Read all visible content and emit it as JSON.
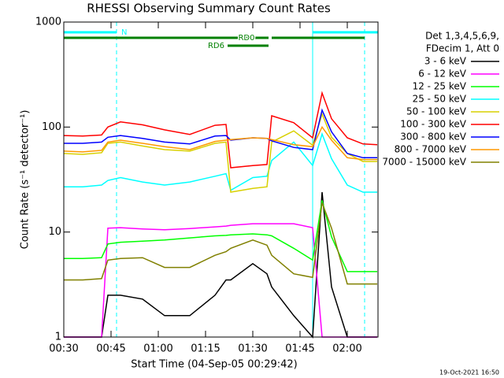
{
  "chart_data": {
    "type": "line",
    "title": "RHESSI Observing Summary Count Rates",
    "xlabel": "Start Time (04-Sep-05 00:29:42)",
    "ylabel": "Count Rate (s⁻¹ detector⁻¹)",
    "legend_header": [
      "Det 1,3,4,5,6,9,",
      "FDecim 1, Att 0"
    ],
    "footer": "19-Oct-2021 16:50",
    "log_y": true,
    "legend_position": "right",
    "xlim": [
      30,
      129.75
    ],
    "xticks": [
      {
        "value": 30,
        "label": "00:30"
      },
      {
        "value": 45,
        "label": "00:45"
      },
      {
        "value": 60,
        "label": "01:00"
      },
      {
        "value": 75,
        "label": "01:15"
      },
      {
        "value": 90,
        "label": "01:30"
      },
      {
        "value": 105,
        "label": "01:45"
      },
      {
        "value": 120,
        "label": "02:00"
      }
    ],
    "ylim": [
      1,
      1000
    ],
    "yticks": [
      1,
      10,
      100,
      1000
    ],
    "x": [
      30,
      36,
      42,
      44,
      48,
      55,
      62,
      70,
      78,
      81.5,
      83,
      90,
      94.5,
      96,
      103,
      109,
      112,
      115,
      120,
      125,
      129.5
    ],
    "series": [
      {
        "name": "3 - 6 keV",
        "color": "#000000",
        "values": [
          1,
          1,
          1,
          2.5,
          2.5,
          2.3,
          1.6,
          1.6,
          2.5,
          3.5,
          3.5,
          5,
          4,
          3,
          1.6,
          1,
          24,
          3,
          1,
          1,
          1
        ]
      },
      {
        "name": "6 - 12 keV",
        "color": "#ff00ff",
        "values": [
          1,
          1,
          1,
          10.9,
          11,
          10.7,
          10.5,
          10.8,
          11.2,
          11.4,
          11.6,
          12,
          12,
          12,
          12,
          11,
          1,
          1,
          1,
          1,
          1
        ]
      },
      {
        "name": "12 - 25 keV",
        "color": "#00ff00",
        "values": [
          5.6,
          5.6,
          5.7,
          7.7,
          8,
          8.2,
          8.4,
          8.8,
          9.2,
          9.3,
          9.4,
          9.6,
          9.4,
          9.2,
          7,
          5.4,
          20,
          9,
          4.2,
          4.2,
          4.2
        ]
      },
      {
        "name": "25 - 50 keV",
        "color": "#00ffff",
        "values": [
          27,
          27,
          28,
          31,
          33,
          30,
          28,
          30,
          34,
          36,
          25,
          33,
          34,
          48,
          72,
          43,
          86,
          50,
          28,
          24,
          24
        ]
      },
      {
        "name": "50 - 100 keV",
        "color": "#d8d000",
        "values": [
          56,
          55,
          57,
          70,
          72,
          66,
          61,
          59,
          70,
          72,
          24,
          26,
          27,
          72,
          92,
          67,
          133,
          80,
          56,
          47,
          47
        ]
      },
      {
        "name": "100 - 300 keV",
        "color": "#ff0000",
        "values": [
          83,
          82,
          84,
          100,
          112,
          105,
          94,
          85,
          104,
          106,
          41,
          43,
          44,
          128,
          110,
          79,
          211,
          120,
          79,
          69,
          68
        ]
      },
      {
        "name": "300 - 800 keV",
        "color": "#0000ff",
        "values": [
          70,
          70,
          72,
          80,
          83,
          78,
          72,
          69,
          82,
          83,
          75,
          79,
          78,
          74,
          64,
          61,
          145,
          90,
          56,
          51,
          51
        ]
      },
      {
        "name": "800 - 7000 keV",
        "color": "#ff9900",
        "values": [
          59,
          58,
          60,
          72,
          75,
          70,
          65,
          61,
          73,
          75,
          76,
          79,
          78,
          76,
          68,
          65,
          100,
          75,
          51,
          49,
          49
        ]
      },
      {
        "name": "7000 - 15000 keV",
        "color": "#808000",
        "values": [
          3.5,
          3.5,
          3.6,
          5.4,
          5.6,
          5.7,
          4.6,
          4.6,
          6,
          6.5,
          7,
          8.4,
          7.5,
          6,
          4,
          3.7,
          19,
          10.9,
          3.2,
          3.2,
          3.2
        ]
      }
    ],
    "vlines": [
      {
        "x": 30,
        "color": "#00ffff",
        "style": "solid"
      },
      {
        "x": 46.75,
        "color": "#00ffff",
        "style": "dashed"
      },
      {
        "x": 109,
        "color": "#00ffff",
        "style": "solid"
      },
      {
        "x": 125.5,
        "color": "#00ffff",
        "style": "dashed"
      }
    ],
    "bars": [
      {
        "label": "N",
        "color": "#00ffff",
        "row": 0,
        "x": [
          30,
          46.75
        ],
        "label_side": "end-out"
      },
      {
        "color": "#00ffff",
        "row": 0,
        "x": [
          109,
          129.75
        ]
      },
      {
        "label": "RD0",
        "color": "#008000",
        "row": 1,
        "x": [
          30,
          95
        ],
        "label_side": "end-in"
      },
      {
        "color": "#008000",
        "row": 1,
        "x": [
          96,
          125.5
        ]
      },
      {
        "label": "RD6",
        "color": "#008000",
        "row": 2,
        "x": [
          82,
          95
        ],
        "label_side": "start-out"
      }
    ]
  }
}
